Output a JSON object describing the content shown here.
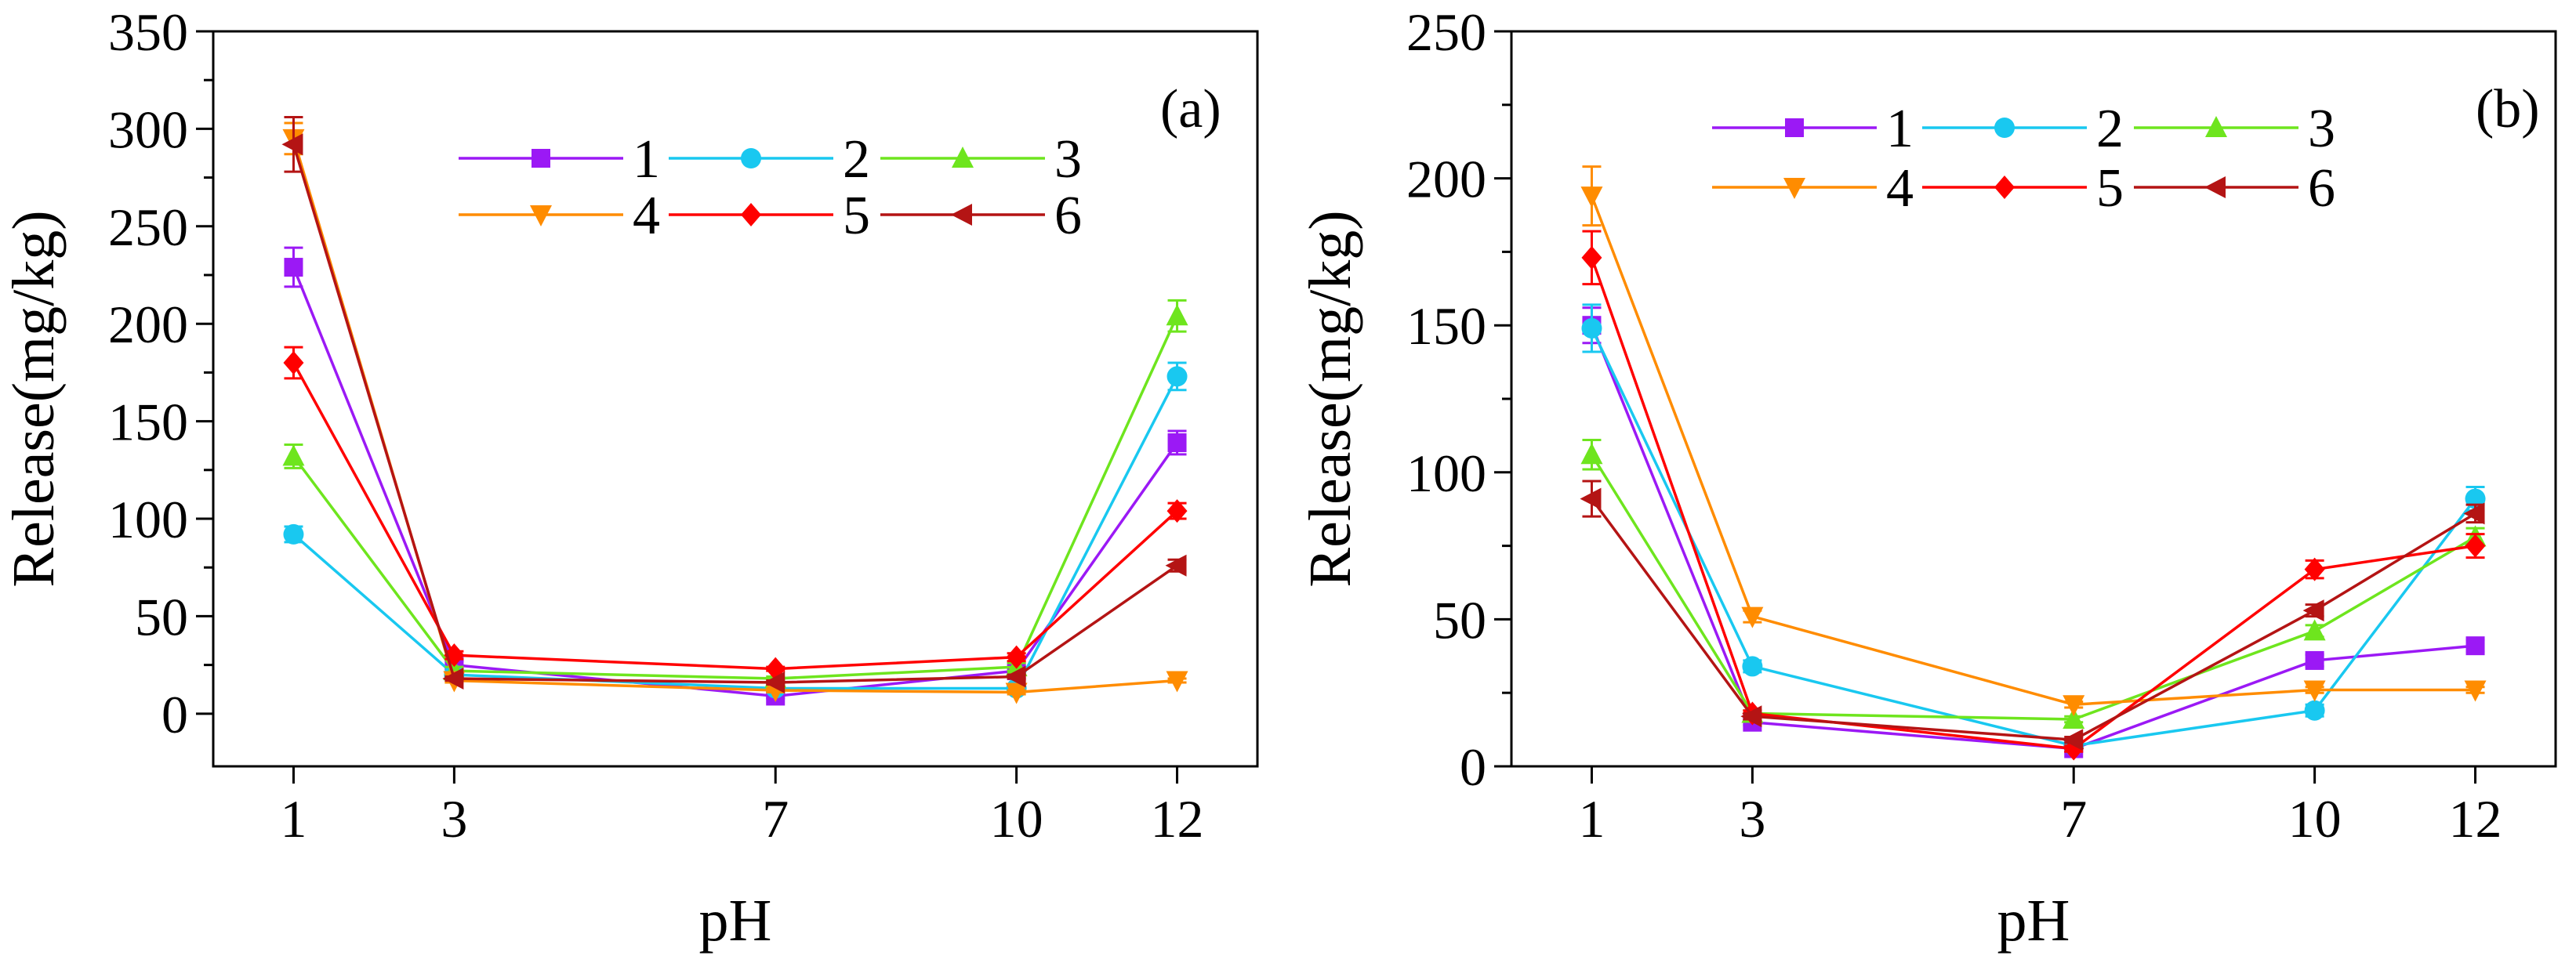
{
  "chart_data": [
    {
      "type": "line",
      "panel_label": "(a)",
      "xlabel": "pH",
      "ylabel": "Release(mg/kg)",
      "x": [
        1,
        3,
        7,
        10,
        12
      ],
      "x_tick_labels": [
        "1",
        "3",
        "7",
        "10",
        "12"
      ],
      "xlim": [
        0,
        13
      ],
      "ylim": [
        -27,
        350
      ],
      "y_ticks": [
        0,
        50,
        100,
        150,
        200,
        250,
        300,
        350
      ],
      "y_tick_labels": [
        "0",
        "50",
        "100",
        "150",
        "200",
        "250",
        "300",
        "350"
      ],
      "legend_position": "top-right",
      "series": [
        {
          "name": "1",
          "color": "#9b19f5",
          "marker": "square",
          "values": [
            229,
            25,
            9,
            22,
            139
          ],
          "errors": [
            10,
            2,
            1,
            2,
            6
          ]
        },
        {
          "name": "2",
          "color": "#19c8f0",
          "marker": "circle",
          "values": [
            92,
            20,
            13,
            13,
            173
          ],
          "errors": [
            4,
            2,
            1,
            1,
            7
          ]
        },
        {
          "name": "3",
          "color": "#6ee51e",
          "marker": "triangle-up",
          "values": [
            132,
            22,
            18,
            24,
            204
          ],
          "errors": [
            6,
            2,
            1,
            2,
            8
          ]
        },
        {
          "name": "4",
          "color": "#ff8c00",
          "marker": "triangle-down",
          "values": [
            295,
            17,
            12,
            11,
            17
          ],
          "errors": [
            8,
            1,
            1,
            1,
            1
          ]
        },
        {
          "name": "5",
          "color": "#ff0000",
          "marker": "diamond",
          "values": [
            180,
            30,
            23,
            29,
            104
          ],
          "errors": [
            8,
            2,
            1,
            2,
            4
          ]
        },
        {
          "name": "6",
          "color": "#b41414",
          "marker": "triangle-left",
          "values": [
            292,
            18,
            16,
            19,
            76
          ],
          "errors": [
            14,
            1,
            1,
            1,
            3
          ]
        }
      ]
    },
    {
      "type": "line",
      "panel_label": "(b)",
      "xlabel": "pH",
      "ylabel": "Release(mg/kg)",
      "x": [
        1,
        3,
        7,
        10,
        12
      ],
      "x_tick_labels": [
        "1",
        "3",
        "7",
        "10",
        "12"
      ],
      "xlim": [
        0,
        13
      ],
      "ylim": [
        0,
        250
      ],
      "y_ticks": [
        0,
        50,
        100,
        150,
        200,
        250
      ],
      "y_tick_labels": [
        "0",
        "50",
        "100",
        "150",
        "200",
        "250"
      ],
      "legend_position": "top",
      "series": [
        {
          "name": "1",
          "color": "#9b19f5",
          "marker": "square",
          "values": [
            150,
            15,
            6,
            36,
            41
          ],
          "errors": [
            6,
            1,
            1,
            2,
            2
          ]
        },
        {
          "name": "2",
          "color": "#19c8f0",
          "marker": "circle",
          "values": [
            149,
            34,
            7,
            19,
            91
          ],
          "errors": [
            8,
            2,
            1,
            2,
            4
          ]
        },
        {
          "name": "3",
          "color": "#6ee51e",
          "marker": "triangle-up",
          "values": [
            106,
            18,
            16,
            46,
            78
          ],
          "errors": [
            5,
            1,
            1,
            2,
            3
          ]
        },
        {
          "name": "4",
          "color": "#ff8c00",
          "marker": "triangle-down",
          "values": [
            194,
            51,
            21,
            26,
            26
          ],
          "errors": [
            10,
            2,
            1,
            1,
            1
          ]
        },
        {
          "name": "5",
          "color": "#ff0000",
          "marker": "diamond",
          "values": [
            173,
            18,
            6,
            67,
            75
          ],
          "errors": [
            9,
            1,
            1,
            3,
            4
          ]
        },
        {
          "name": "6",
          "color": "#b41414",
          "marker": "triangle-left",
          "values": [
            91,
            17,
            9,
            53,
            86
          ],
          "errors": [
            6,
            1,
            1,
            2,
            3
          ]
        }
      ]
    }
  ]
}
